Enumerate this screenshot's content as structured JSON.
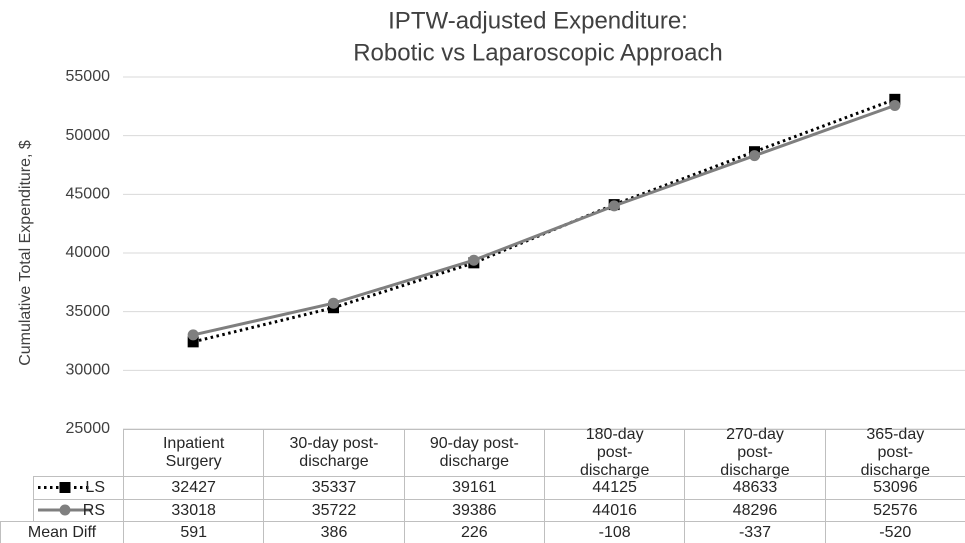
{
  "chart_data": {
    "type": "line",
    "title": [
      "IPTW-adjusted Expenditure:",
      "Robotic vs Laparoscopic Approach"
    ],
    "y_label": "Cumulative Total Expenditure, $",
    "categories": [
      "Inpatient Surgery",
      "30-day post-discharge",
      "90-day post-discharge",
      "180-day post-discharge",
      "270-day post-discharge",
      "365-day post-discharge"
    ],
    "series": [
      {
        "name": "LS",
        "color": "#000000",
        "line_style": "dotted",
        "marker": "square",
        "values": [
          32427,
          35337,
          39161,
          44125,
          48633,
          53096
        ]
      },
      {
        "name": "RS",
        "color": "#7f7f7f",
        "line_style": "solid",
        "marker": "circle",
        "values": [
          33018,
          35722,
          39386,
          44016,
          48296,
          52576
        ]
      }
    ],
    "mean_diff": {
      "name": "Mean Diff",
      "values": [
        591,
        386,
        226,
        -108,
        -337,
        -520
      ]
    },
    "ylim": [
      25000,
      55000
    ],
    "yticks": [
      25000,
      30000,
      35000,
      40000,
      45000,
      50000,
      55000
    ],
    "grid": true
  }
}
